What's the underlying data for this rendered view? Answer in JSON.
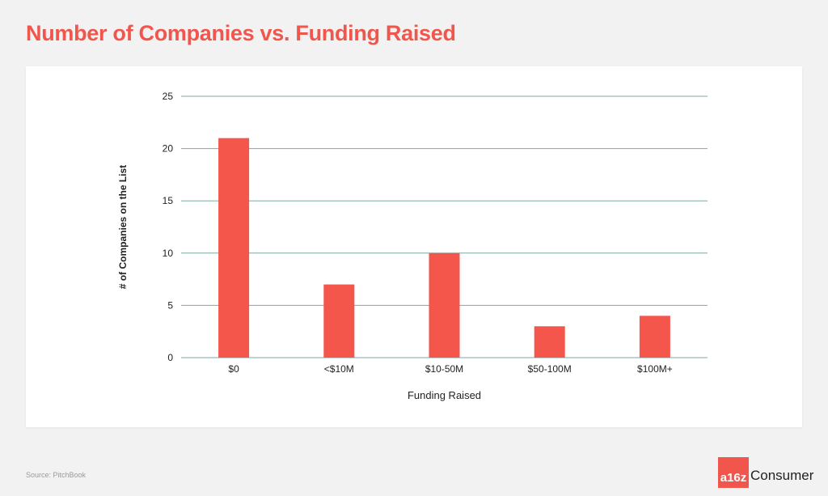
{
  "page": {
    "title": "Number of Companies vs. Funding Raised",
    "source": "Source: PitchBook",
    "logo": {
      "badge_text": "a16z",
      "text": "Consumer"
    }
  },
  "colors": {
    "accent": "#f0564c",
    "bar": "#f5564c",
    "grid": "#7fa9a6",
    "text": "#222222"
  },
  "chart_data": {
    "type": "bar",
    "title": "",
    "xlabel": "Funding Raised",
    "ylabel": "# of Companies on the List",
    "categories": [
      "$0",
      "<$10M",
      "$10-50M",
      "$50-100M",
      "$100M+"
    ],
    "values": [
      21,
      7,
      10,
      3,
      4
    ],
    "ylim": [
      0,
      25
    ],
    "yticks": [
      0,
      5,
      10,
      15,
      20,
      25
    ],
    "grid": true,
    "legend": "none"
  }
}
